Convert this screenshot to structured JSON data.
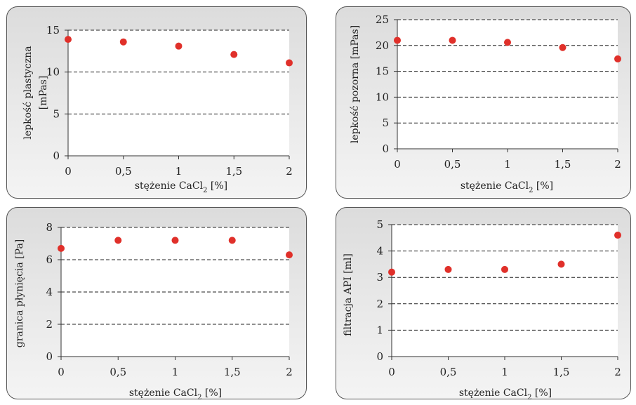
{
  "chart_data": [
    {
      "type": "scatter",
      "x": [
        0,
        0.5,
        1,
        1.5,
        2
      ],
      "y": [
        13.9,
        13.6,
        13.1,
        12.1,
        11.1
      ],
      "x_tick_labels": [
        "0",
        "0,5",
        "1",
        "1,5",
        "2"
      ],
      "y_ticks": [
        0,
        5,
        10,
        15
      ],
      "y_tick_labels": [
        "0",
        "5",
        "10",
        "15"
      ],
      "xlabel": "stężenie CaCl",
      "xlabel_sub": "2",
      "xlabel_tail": " [%]",
      "ylabel_lines": [
        "lepkość plastyczna",
        "[mPas]"
      ],
      "xlim": [
        0,
        2
      ],
      "ylim": [
        0,
        15
      ],
      "grid": "dashed horizontal",
      "marker_color": "#e0302a"
    },
    {
      "type": "scatter",
      "x": [
        0,
        0.5,
        1,
        1.5,
        2
      ],
      "y": [
        21.0,
        21.0,
        20.6,
        19.6,
        17.4
      ],
      "x_tick_labels": [
        "0",
        "0,5",
        "1",
        "1,5",
        "2"
      ],
      "y_ticks": [
        0,
        5,
        10,
        15,
        20,
        25
      ],
      "y_tick_labels": [
        "0",
        "5",
        "10",
        "15",
        "20",
        "25"
      ],
      "xlabel": "stężenie CaCl",
      "xlabel_sub": "2",
      "xlabel_tail": " [%]",
      "ylabel_lines": [
        "lepkość pozorna [mPas]"
      ],
      "xlim": [
        0,
        2
      ],
      "ylim": [
        0,
        25
      ],
      "grid": "dashed horizontal",
      "marker_color": "#e0302a"
    },
    {
      "type": "scatter",
      "x": [
        0,
        0.5,
        1,
        1.5,
        2
      ],
      "y": [
        6.7,
        7.2,
        7.2,
        7.2,
        6.3
      ],
      "x_tick_labels": [
        "0",
        "0,5",
        "1",
        "1,5",
        "2"
      ],
      "y_ticks": [
        0,
        2,
        4,
        6,
        8
      ],
      "y_tick_labels": [
        "0",
        "2",
        "4",
        "6",
        "8"
      ],
      "xlabel": "stężenie CaCl",
      "xlabel_sub": "2",
      "xlabel_tail": " [%]",
      "ylabel_lines": [
        "granica płynięcia [Pa]"
      ],
      "xlim": [
        0,
        2
      ],
      "ylim": [
        0,
        8
      ],
      "grid": "dashed horizontal",
      "marker_color": "#e0302a"
    },
    {
      "type": "scatter",
      "x": [
        0,
        0.5,
        1,
        1.5,
        2
      ],
      "y": [
        3.2,
        3.3,
        3.3,
        3.5,
        4.6
      ],
      "x_tick_labels": [
        "0",
        "0,5",
        "1",
        "1,5",
        "2"
      ],
      "y_ticks": [
        0,
        1,
        2,
        3,
        4,
        5
      ],
      "y_tick_labels": [
        "0",
        "1",
        "2",
        "3",
        "4",
        "5"
      ],
      "xlabel": "stężenie CaCl",
      "xlabel_sub": "2",
      "xlabel_tail": " [%]",
      "ylabel_lines": [
        "filtracja API [ml]"
      ],
      "xlim": [
        0,
        2
      ],
      "ylim": [
        0,
        5
      ],
      "grid": "dashed horizontal",
      "marker_color": "#e0302a"
    }
  ]
}
